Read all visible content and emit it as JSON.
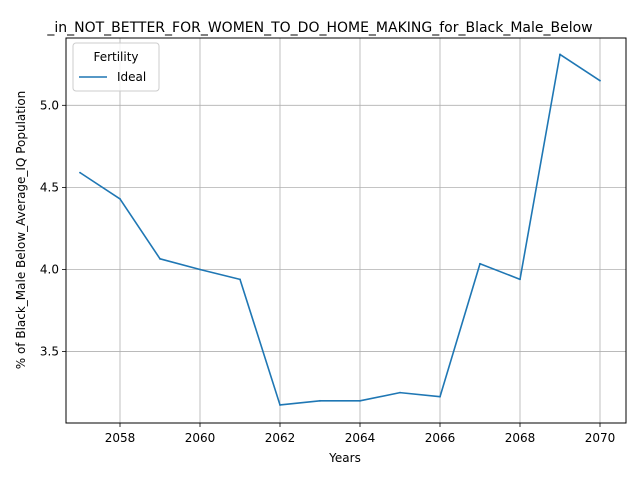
{
  "chart_data": {
    "type": "line",
    "title": "_in_NOT_BETTER_FOR_WOMEN_TO_DO_HOME_MAKING_for_Black_Male_Below",
    "xlabel": "Years",
    "ylabel": "% of Black_Male Below_Average_IQ Population",
    "xlim": [
      2056.65,
      2070.65
    ],
    "ylim": [
      3.065,
      5.41
    ],
    "x_ticks": [
      2058,
      2060,
      2062,
      2064,
      2066,
      2068,
      2070
    ],
    "y_ticks": [
      3.5,
      4.0,
      4.5,
      5.0
    ],
    "grid": true,
    "legend": {
      "title": "Fertility",
      "placement": "top-left"
    },
    "series": [
      {
        "name": "Ideal",
        "color": "#1f77b4",
        "x": [
          2057,
          2058,
          2059,
          2060,
          2061,
          2062,
          2063,
          2064,
          2065,
          2066,
          2067,
          2068,
          2069,
          2070
        ],
        "y": [
          4.59,
          4.43,
          4.065,
          4.0,
          3.94,
          3.175,
          3.2,
          3.2,
          3.25,
          3.225,
          4.035,
          3.94,
          5.31,
          5.15
        ]
      }
    ]
  }
}
